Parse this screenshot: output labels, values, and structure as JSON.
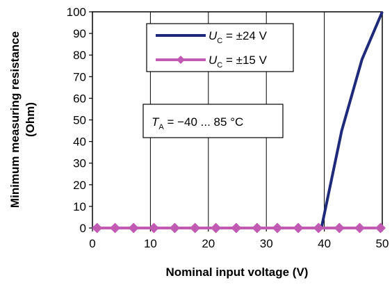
{
  "chart_data": {
    "type": "line",
    "xlabel": "Nominal input voltage  (V)",
    "ylabel_line1": "Minimum measuring resistance",
    "ylabel_line2": "(Ohm)",
    "xlim": [
      0,
      50
    ],
    "ylim": [
      0,
      100
    ],
    "xticks": [
      0,
      10,
      20,
      30,
      40,
      50
    ],
    "yticks": [
      0,
      10,
      20,
      30,
      40,
      50,
      60,
      70,
      80,
      90,
      100
    ],
    "grid": {
      "x": true,
      "y": false
    },
    "legend_position": "top-right",
    "series": [
      {
        "name_prefix": "U",
        "name_sub": "C",
        "name_suffix": " = ±24 V",
        "color": "#1f2a7a",
        "marker": "none",
        "x": [
          0,
          39.5,
          43,
          46.5,
          50
        ],
        "y": [
          0,
          0,
          45,
          78,
          100
        ]
      },
      {
        "name_prefix": "U",
        "name_sub": "C",
        "name_suffix": " = ±15 V",
        "color": "#c05ab2",
        "marker": "diamond",
        "x": [
          0.8,
          3.9,
          7.1,
          10.6,
          14.2,
          17.7,
          21.3,
          24.8,
          28.4,
          31.9,
          35.5,
          39.0,
          42.6,
          46.1,
          49.7
        ],
        "y": [
          0,
          0,
          0,
          0,
          0,
          0,
          0,
          0,
          0,
          0,
          0,
          0,
          0,
          0,
          0
        ]
      }
    ],
    "annotation": {
      "prefix": "T",
      "sub": "A",
      "suffix": " = −40 ... 85 °C"
    }
  }
}
